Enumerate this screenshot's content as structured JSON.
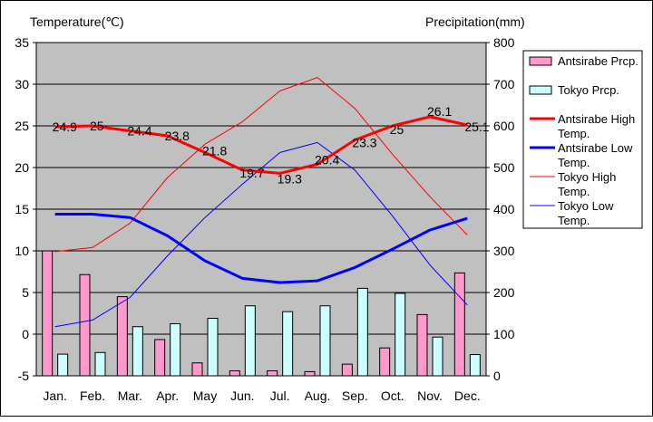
{
  "chart_data": {
    "type": "bar+line",
    "y_left_label": "Temperature(℃)",
    "y_right_label": "Precipitation(mm)",
    "y_left_range": [
      -5,
      35
    ],
    "y_left_ticks": [
      "-5",
      "0",
      "5",
      "10",
      "15",
      "20",
      "25",
      "30",
      "35"
    ],
    "y_right_range": [
      0,
      800
    ],
    "y_right_ticks": [
      "0",
      "100",
      "200",
      "300",
      "400",
      "500",
      "600",
      "700",
      "800"
    ],
    "grid": true,
    "legend_position": "right",
    "categories": [
      "Jan.",
      "Feb.",
      "Mar.",
      "Apr.",
      "May",
      "Jun.",
      "Jul.",
      "Aug.",
      "Sep.",
      "Oct.",
      "Nov.",
      "Dec."
    ],
    "bar_series": [
      {
        "name": "Antsirabe Prcp.",
        "color": "#ff99cc",
        "values": [
          300,
          243,
          190,
          87,
          31,
          12,
          12,
          10,
          28,
          67,
          147,
          247
        ]
      },
      {
        "name": "Tokyo Prcp.",
        "color": "#ccffff",
        "values": [
          52,
          56,
          118,
          125,
          138,
          168,
          154,
          168,
          210,
          198,
          93,
          51
        ]
      }
    ],
    "line_series": [
      {
        "name": "Antsirabe High Temp.",
        "color": "#ff0000",
        "width": "thick",
        "values": [
          24.9,
          25,
          24.4,
          23.8,
          21.8,
          19.7,
          19.3,
          20.4,
          23.3,
          25,
          26.1,
          25.1
        ],
        "labels": [
          "24.9",
          "25",
          "24.4",
          "23.8",
          "21.8",
          "19.7",
          "19.3",
          "20.4",
          "23.3",
          "25",
          "26.1",
          "25.1"
        ]
      },
      {
        "name": "Antsirabe Low Temp.",
        "color": "#0000ff",
        "width": "thick",
        "values": [
          14.4,
          14.4,
          14,
          11.8,
          8.8,
          6.7,
          6.2,
          6.4,
          8,
          10.2,
          12.5,
          13.9
        ]
      },
      {
        "name": "Tokyo High Temp.",
        "color": "#ff0000",
        "width": "thin",
        "values": [
          9.9,
          10.4,
          13.3,
          18.8,
          22.8,
          25.5,
          29.2,
          30.8,
          27.1,
          21.6,
          16.5,
          11.9
        ]
      },
      {
        "name": "Tokyo Low Temp.",
        "color": "#0000ff",
        "width": "thin",
        "values": [
          0.9,
          1.7,
          4.4,
          9.4,
          14,
          18,
          21.8,
          23,
          19.7,
          14.2,
          8.3,
          3.5
        ]
      }
    ]
  },
  "legend": [
    {
      "label": "Antsirabe Prcp."
    },
    {
      "label": "Tokyo Prcp."
    },
    {
      "label": "Antsirabe High Temp."
    },
    {
      "label": "Antsirabe Low Temp."
    },
    {
      "label": "Tokyo High Temp."
    },
    {
      "label": "Tokyo Low Temp."
    }
  ]
}
